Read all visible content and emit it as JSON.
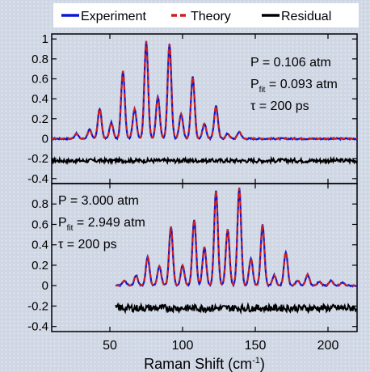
{
  "colors": {
    "experiment": "#0a18d6",
    "theory": "#cc1f1f",
    "residual": "#000000",
    "legend_bg": "#ffffff",
    "axis": "#000000"
  },
  "legend": {
    "items": [
      {
        "label": "Experiment",
        "color": "#0a18d6",
        "style": "solid"
      },
      {
        "label": "Theory",
        "color": "#cc1f1f",
        "style": "dashed"
      },
      {
        "label": "Residual",
        "color": "#000000",
        "style": "solid"
      }
    ]
  },
  "chart_data": {
    "type": "line",
    "xlabel_prefix": "Raman Shift (cm",
    "xlabel_sup": "-1",
    "xlabel_suffix": ")",
    "xlim": [
      10,
      220
    ],
    "x_ticks": [
      50,
      100,
      150,
      200
    ],
    "panels": [
      {
        "ylim": [
          -0.45,
          1.05
        ],
        "y_ticks": [
          "1",
          "0.8",
          "0.6",
          "0.4",
          "0.2",
          "0",
          "-0.2",
          "-0.4"
        ],
        "y_tick_values": [
          1,
          0.8,
          0.6,
          0.4,
          0.2,
          0,
          -0.2,
          -0.4
        ],
        "annotations": [
          {
            "main": "P = 0.106 atm",
            "sub": ""
          },
          {
            "main": "P",
            "sub": "fit",
            "rest": " = 0.093 atm"
          },
          {
            "main": "τ = 200 ps",
            "sub": ""
          }
        ],
        "data_range": [
          10,
          220
        ],
        "baseline": 0.0,
        "residual_offset": -0.22,
        "peaks": [
          {
            "x": 27,
            "y": 0.05
          },
          {
            "x": 36,
            "y": 0.09
          },
          {
            "x": 43,
            "y": 0.3
          },
          {
            "x": 51,
            "y": 0.16
          },
          {
            "x": 59,
            "y": 0.68
          },
          {
            "x": 67,
            "y": 0.3
          },
          {
            "x": 75,
            "y": 0.98
          },
          {
            "x": 83,
            "y": 0.42
          },
          {
            "x": 91,
            "y": 0.95
          },
          {
            "x": 99,
            "y": 0.25
          },
          {
            "x": 107,
            "y": 0.62
          },
          {
            "x": 115,
            "y": 0.15
          },
          {
            "x": 123,
            "y": 0.33
          },
          {
            "x": 131,
            "y": 0.05
          },
          {
            "x": 139,
            "y": 0.07
          }
        ]
      },
      {
        "ylim": [
          -0.45,
          1.0
        ],
        "y_ticks": [
          "0.8",
          "0.6",
          "0.4",
          "0.2",
          "0",
          "-0.2",
          "-0.4"
        ],
        "y_tick_values": [
          0.8,
          0.6,
          0.4,
          0.2,
          0,
          -0.2,
          -0.4
        ],
        "annotations": [
          {
            "main": "P = 3.000 atm",
            "sub": ""
          },
          {
            "main": "P",
            "sub": "fit",
            "rest": " = 2.949 atm"
          },
          {
            "main": "τ = 200 ps",
            "sub": ""
          }
        ],
        "data_range": [
          54,
          220
        ],
        "baseline": 0.0,
        "residual_offset": -0.22,
        "peaks": [
          {
            "x": 60,
            "y": 0.05
          },
          {
            "x": 68,
            "y": 0.1
          },
          {
            "x": 76,
            "y": 0.28
          },
          {
            "x": 84,
            "y": 0.19
          },
          {
            "x": 92,
            "y": 0.58
          },
          {
            "x": 100,
            "y": 0.2
          },
          {
            "x": 108,
            "y": 0.65
          },
          {
            "x": 115,
            "y": 0.38
          },
          {
            "x": 123,
            "y": 0.93
          },
          {
            "x": 131,
            "y": 0.55
          },
          {
            "x": 139,
            "y": 0.96
          },
          {
            "x": 147,
            "y": 0.27
          },
          {
            "x": 155,
            "y": 0.6
          },
          {
            "x": 163,
            "y": 0.1
          },
          {
            "x": 171,
            "y": 0.33
          },
          {
            "x": 179,
            "y": 0.05
          },
          {
            "x": 186,
            "y": 0.11
          },
          {
            "x": 194,
            "y": 0.04
          },
          {
            "x": 202,
            "y": 0.05
          },
          {
            "x": 210,
            "y": 0.03
          }
        ]
      }
    ]
  }
}
